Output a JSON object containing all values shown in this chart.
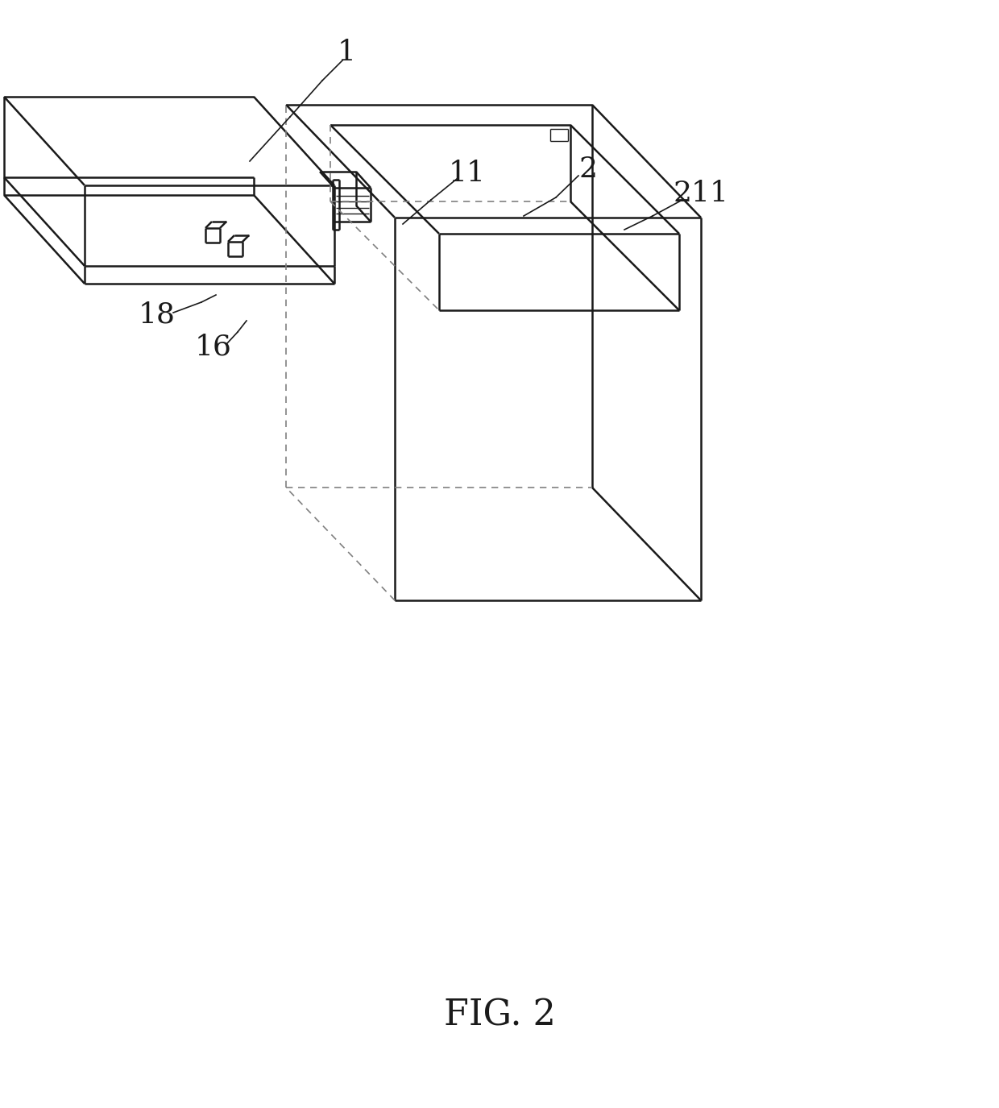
{
  "background_color": "#ffffff",
  "line_color": "#1a1a1a",
  "dashed_color": "#808080",
  "label_color": "#1a1a1a",
  "fig_label": "FIG. 2",
  "lw_main": 1.8,
  "lw_dashed": 1.2,
  "figsize": [
    12.4,
    13.75
  ],
  "dpi": 100
}
